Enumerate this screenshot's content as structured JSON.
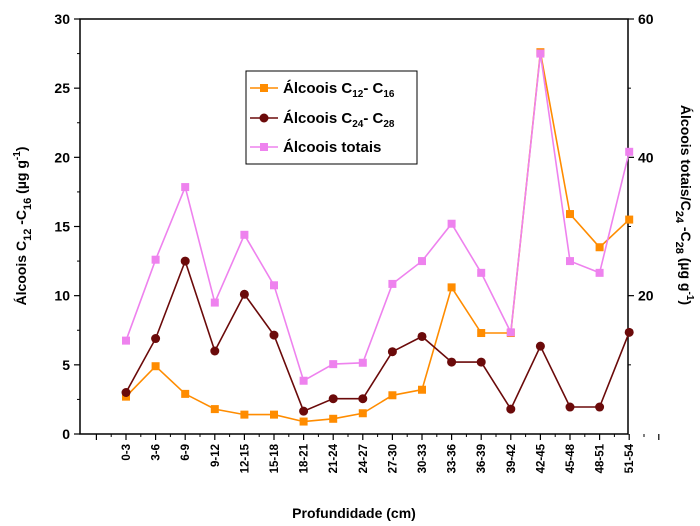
{
  "chart_data": {
    "type": "line",
    "xlabel": "Profundidade (cm)",
    "ylabel_left": {
      "base": "Álcoois C",
      "sub1": "12",
      "mid": " -C",
      "sub2": "16",
      "unit": " (µg g",
      "sup": "-1",
      "end": ")"
    },
    "ylabel_right": {
      "base": "Álcoois totais/C",
      "sub1": "24",
      "mid": " -C",
      "sub2": "28",
      "unit": " (µg g",
      "sup": "-1",
      "end": ")"
    },
    "categories": [
      "0-3",
      "3-6",
      "6-9",
      "9-12",
      "12-15",
      "15-18",
      "18-21",
      "21-24",
      "24-27",
      "27-30",
      "30-33",
      "33-36",
      "36-39",
      "39-42",
      "42-45",
      "45-48",
      "48-51",
      "51-54"
    ],
    "ylim_left": [
      0,
      30
    ],
    "yticks_left": [
      "0",
      "5",
      "10",
      "15",
      "20",
      "25",
      "30"
    ],
    "ylim_right": [
      0,
      60
    ],
    "yticks_right": [
      "20",
      "40",
      "60"
    ],
    "legend_position": "top-center",
    "series": [
      {
        "legend": {
          "base": "Álcoois C",
          "sub1": "12",
          "mid": "- C",
          "sub2": "16"
        },
        "axis": "left",
        "color": "#ff8c00",
        "marker": "square",
        "values": [
          2.7,
          4.9,
          2.9,
          1.8,
          1.4,
          1.4,
          0.9,
          1.1,
          1.5,
          2.8,
          3.2,
          10.6,
          7.3,
          7.3,
          27.6,
          15.9,
          13.5,
          15.5
        ]
      },
      {
        "legend": {
          "base": "Álcoois C",
          "sub1": "24",
          "mid": "- C",
          "sub2": "28"
        },
        "axis": "right",
        "color": "#6b0a0a",
        "marker": "circle",
        "values": [
          6,
          13.8,
          25,
          12,
          20.2,
          14.3,
          3.3,
          5.1,
          5.1,
          11.9,
          14.1,
          10.4,
          10.4,
          3.6,
          12.7,
          3.9,
          3.9,
          14.7
        ]
      },
      {
        "legend": {
          "base": "Álcoois totais"
        },
        "axis": "right",
        "color": "#ee82ee",
        "marker": "square",
        "values": [
          13.5,
          25.2,
          35.7,
          19,
          28.8,
          21.5,
          7.7,
          10.1,
          10.3,
          21.7,
          25,
          30.4,
          23.3,
          14.7,
          55,
          25,
          23.3,
          40.8
        ]
      }
    ]
  }
}
